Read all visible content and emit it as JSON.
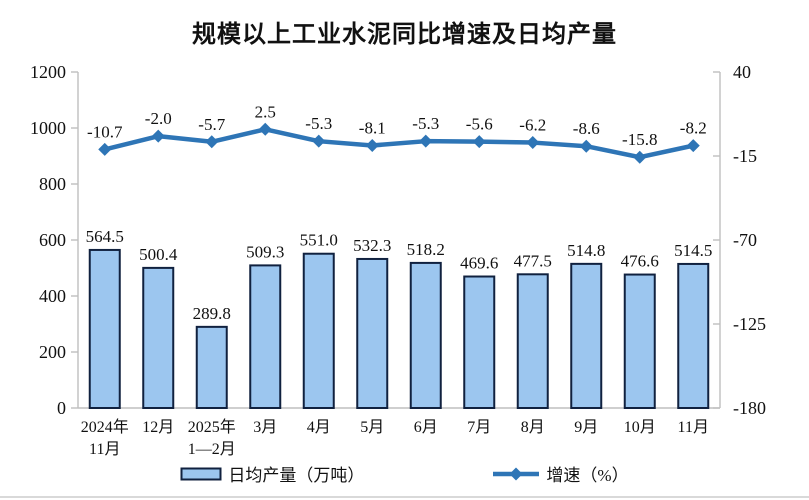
{
  "chart_data": {
    "type": "combo",
    "title": "规模以上工业水泥同比增速及日均产量",
    "categories": [
      "2024年\n11月",
      "12月",
      "2025年\n1—2月",
      "3月",
      "4月",
      "5月",
      "6月",
      "7月",
      "8月",
      "9月",
      "10月",
      "11月"
    ],
    "series": [
      {
        "name": "日均产量（万吨）",
        "type": "bar",
        "axis": "left",
        "values": [
          564.5,
          500.4,
          289.8,
          509.3,
          551.0,
          532.3,
          518.2,
          469.6,
          477.5,
          514.8,
          476.6,
          514.5
        ],
        "labels": [
          "564.5",
          "500.4",
          "289.8",
          "509.3",
          "551.0",
          "532.3",
          "518.2",
          "469.6",
          "477.5",
          "514.8",
          "476.6",
          "514.5"
        ]
      },
      {
        "name": "增速（%）",
        "type": "line",
        "axis": "right",
        "values": [
          -10.7,
          -2.0,
          -5.7,
          2.5,
          -5.3,
          -8.1,
          -5.3,
          -5.6,
          -6.2,
          -8.6,
          -15.8,
          -8.2
        ],
        "labels": [
          "-10.7",
          "-2.0",
          "-5.7",
          "2.5",
          "-5.3",
          "-8.1",
          "-5.3",
          "-5.6",
          "-6.2",
          "-8.6",
          "-15.8",
          "-8.2"
        ]
      }
    ],
    "left_axis": {
      "min": 0,
      "max": 1200,
      "ticks": [
        0,
        200,
        400,
        600,
        800,
        1000,
        1200
      ],
      "tick_labels": [
        "0",
        "200",
        "400",
        "600",
        "800",
        "1000",
        "1200"
      ]
    },
    "right_axis": {
      "min": -180,
      "max": 40,
      "ticks": [
        40,
        -15,
        -70,
        -125,
        -180
      ],
      "tick_labels": [
        "40",
        "-15",
        "-70",
        "-125",
        "-180"
      ]
    },
    "grid": false,
    "legend_position": "bottom",
    "colors": {
      "bar_fill": "#9CC6EF",
      "bar_border": "#10213F",
      "line": "#2E75B6",
      "axis": "#BFBFBF",
      "text": "#111111"
    }
  }
}
